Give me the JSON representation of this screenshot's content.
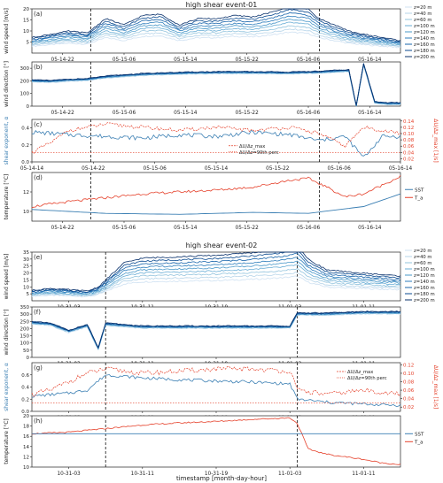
{
  "chart_data": [
    {
      "event_title": "high shear event-01",
      "xlabel": "",
      "x_ticks": [
        "05-14-22",
        "05-15-06",
        "05-15-14",
        "05-15-22",
        "05-16-06",
        "05-16-14"
      ],
      "panel_c_x_ticks": [
        "05-14-14",
        "05-14-22",
        "05-15-06",
        "05-15-14",
        "05-15-22",
        "05-16-06",
        "05-16-14"
      ],
      "event_window": {
        "start": 0.16,
        "end": 0.78
      },
      "heights": [
        "z=20 m",
        "z=40 m",
        "z=60 m",
        "z=100 m",
        "z=120 m",
        "z=140 m",
        "z=160 m",
        "z=180 m",
        "z=200 m"
      ],
      "panels": [
        {
          "id": "a",
          "label": "(a)",
          "type": "line",
          "ylabel": "wind speed [m/s]",
          "ylim": [
            0,
            20
          ],
          "yticks": [
            "5",
            "10",
            "15",
            "20"
          ],
          "shape_profile": [
            [
              0,
              0.25
            ],
            [
              0.05,
              0.3
            ],
            [
              0.1,
              0.35
            ],
            [
              0.15,
              0.32
            ],
            [
              0.2,
              0.55
            ],
            [
              0.25,
              0.45
            ],
            [
              0.3,
              0.6
            ],
            [
              0.35,
              0.62
            ],
            [
              0.4,
              0.45
            ],
            [
              0.45,
              0.55
            ],
            [
              0.5,
              0.55
            ],
            [
              0.55,
              0.6
            ],
            [
              0.6,
              0.58
            ],
            [
              0.65,
              0.65
            ],
            [
              0.7,
              0.75
            ],
            [
              0.75,
              0.7
            ],
            [
              0.78,
              0.55
            ],
            [
              0.82,
              0.45
            ],
            [
              0.86,
              0.35
            ],
            [
              0.9,
              0.3
            ],
            [
              0.95,
              0.25
            ],
            [
              1.0,
              0.2
            ]
          ]
        },
        {
          "id": "b",
          "label": "(b)",
          "type": "line",
          "ylabel": "wind direction [°]",
          "ylim": [
            0,
            350
          ],
          "yticks": [
            "0",
            "100",
            "200",
            "300"
          ],
          "points": [
            [
              0,
              200
            ],
            [
              0.05,
              195
            ],
            [
              0.1,
              205
            ],
            [
              0.15,
              210
            ],
            [
              0.2,
              230
            ],
            [
              0.3,
              250
            ],
            [
              0.4,
              260
            ],
            [
              0.5,
              265
            ],
            [
              0.6,
              265
            ],
            [
              0.7,
              262
            ],
            [
              0.78,
              268
            ],
            [
              0.82,
              275
            ],
            [
              0.86,
              280
            ],
            [
              0.88,
              0
            ],
            [
              0.9,
              330
            ],
            [
              0.93,
              30
            ],
            [
              0.96,
              20
            ],
            [
              1.0,
              20
            ]
          ]
        },
        {
          "id": "c",
          "label": "(c)",
          "type": "line",
          "ylabel": "shear exponent, α",
          "ylabel_right": "ΔU/Δz_max [1/s]",
          "ylim": [
            0,
            0.5
          ],
          "yticks": [
            "0.0",
            "0.2",
            "0.4"
          ],
          "yticks_right": [
            "0.02",
            "0.04",
            "0.06",
            "0.08",
            "0.10",
            "0.12",
            "0.14"
          ],
          "legend": [
            "ΔU/Δz_max",
            "ΔU/Δz=90th perc"
          ],
          "percentile_line": 0.04,
          "points_alpha": [
            [
              0,
              0.35
            ],
            [
              0.1,
              0.32
            ],
            [
              0.2,
              0.3
            ],
            [
              0.3,
              0.28
            ],
            [
              0.4,
              0.32
            ],
            [
              0.5,
              0.3
            ],
            [
              0.6,
              0.35
            ],
            [
              0.7,
              0.32
            ],
            [
              0.78,
              0.25
            ],
            [
              0.85,
              0.3
            ],
            [
              0.9,
              0.05
            ],
            [
              0.95,
              0.3
            ],
            [
              1.0,
              0.3
            ]
          ],
          "points_shear": [
            [
              0,
              0.04
            ],
            [
              0.05,
              0.07
            ],
            [
              0.1,
              0.11
            ],
            [
              0.2,
              0.13
            ],
            [
              0.3,
              0.12
            ],
            [
              0.4,
              0.11
            ],
            [
              0.5,
              0.12
            ],
            [
              0.6,
              0.11
            ],
            [
              0.7,
              0.12
            ],
            [
              0.78,
              0.1
            ],
            [
              0.85,
              0.06
            ],
            [
              0.9,
              0.12
            ],
            [
              1.0,
              0.1
            ]
          ]
        },
        {
          "id": "d",
          "label": "(d)",
          "type": "line",
          "ylabel": "temperature [°C]",
          "ylim": [
            9,
            14
          ],
          "yticks": [
            "10",
            "12"
          ],
          "legend": [
            "SST",
            "T_a"
          ],
          "colors": {
            "SST": "#3b7fb3",
            "T_a": "#e5412b"
          },
          "points_sst": [
            [
              0,
              10.2
            ],
            [
              0.2,
              9.8
            ],
            [
              0.4,
              9.7
            ],
            [
              0.6,
              9.9
            ],
            [
              0.75,
              9.8
            ],
            [
              0.9,
              10.5
            ],
            [
              1.0,
              11.8
            ]
          ],
          "points_ta": [
            [
              0,
              10.5
            ],
            [
              0.1,
              11.0
            ],
            [
              0.2,
              11.4
            ],
            [
              0.3,
              11.8
            ],
            [
              0.4,
              12.0
            ],
            [
              0.5,
              12.2
            ],
            [
              0.6,
              12.5
            ],
            [
              0.7,
              13.2
            ],
            [
              0.75,
              13.4
            ],
            [
              0.8,
              12.5
            ],
            [
              0.85,
              11.5
            ],
            [
              0.9,
              11.8
            ],
            [
              1.0,
              13.6
            ]
          ]
        }
      ]
    },
    {
      "event_title": "high shear event-02",
      "xlabel": "timestamp [month-day-hour]",
      "x_ticks": [
        "10-31-03",
        "10-31-11",
        "10-31-19",
        "11-01-03",
        "11-01-11"
      ],
      "event_window": {
        "start": 0.2,
        "end": 0.72
      },
      "heights": [
        "z=20 m",
        "z=40 m",
        "z=60 m",
        "z=100 m",
        "z=120 m",
        "z=140 m",
        "z=160 m",
        "z=180 m",
        "z=200 m"
      ],
      "panels": [
        {
          "id": "e",
          "label": "(e)",
          "type": "line",
          "ylabel": "wind speed [m/s]",
          "ylim": [
            0,
            35
          ],
          "yticks": [
            "5",
            "10",
            "15",
            "20",
            "25",
            "30",
            "35"
          ],
          "shape_profile": [
            [
              0,
              0.15
            ],
            [
              0.05,
              0.18
            ],
            [
              0.1,
              0.16
            ],
            [
              0.15,
              0.14
            ],
            [
              0.18,
              0.2
            ],
            [
              0.2,
              0.3
            ],
            [
              0.25,
              0.55
            ],
            [
              0.3,
              0.62
            ],
            [
              0.4,
              0.64
            ],
            [
              0.5,
              0.66
            ],
            [
              0.6,
              0.7
            ],
            [
              0.68,
              0.75
            ],
            [
              0.72,
              0.8
            ],
            [
              0.75,
              0.6
            ],
            [
              0.8,
              0.45
            ],
            [
              0.85,
              0.42
            ],
            [
              0.9,
              0.4
            ],
            [
              1.0,
              0.36
            ]
          ]
        },
        {
          "id": "f",
          "label": "(f)",
          "type": "line",
          "ylabel": "wind direction [°]",
          "ylim": [
            0,
            350
          ],
          "yticks": [
            "0",
            "50",
            "100",
            "150",
            "200",
            "250",
            "300",
            "350"
          ],
          "points": [
            [
              0,
              240
            ],
            [
              0.05,
              230
            ],
            [
              0.1,
              180
            ],
            [
              0.15,
              220
            ],
            [
              0.18,
              60
            ],
            [
              0.2,
              230
            ],
            [
              0.3,
              210
            ],
            [
              0.4,
              210
            ],
            [
              0.5,
              210
            ],
            [
              0.6,
              210
            ],
            [
              0.7,
              210
            ],
            [
              0.72,
              300
            ],
            [
              0.8,
              300
            ],
            [
              0.9,
              310
            ],
            [
              1.0,
              310
            ]
          ]
        },
        {
          "id": "g",
          "label": "(g)",
          "type": "line",
          "ylabel": "shear exponent, α",
          "ylabel_right": "ΔU/Δz_max [1/s]",
          "ylim": [
            0,
            0.8
          ],
          "yticks": [
            "0.0",
            "0.2",
            "0.4",
            "0.6"
          ],
          "yticks_right": [
            "0.02",
            "0.04",
            "0.06",
            "0.08",
            "0.10",
            "0.12"
          ],
          "legend": [
            "ΔU/Δz_max",
            "ΔU/Δz=90th perc"
          ],
          "percentile_line": 0.03,
          "points_alpha": [
            [
              0,
              0.25
            ],
            [
              0.1,
              0.3
            ],
            [
              0.15,
              0.35
            ],
            [
              0.2,
              0.6
            ],
            [
              0.3,
              0.55
            ],
            [
              0.4,
              0.52
            ],
            [
              0.5,
              0.5
            ],
            [
              0.6,
              0.48
            ],
            [
              0.7,
              0.45
            ],
            [
              0.72,
              0.2
            ],
            [
              0.8,
              0.15
            ],
            [
              0.9,
              0.12
            ],
            [
              1.0,
              0.1
            ]
          ],
          "points_shear": [
            [
              0,
              0.05
            ],
            [
              0.05,
              0.06
            ],
            [
              0.1,
              0.08
            ],
            [
              0.15,
              0.1
            ],
            [
              0.2,
              0.11
            ],
            [
              0.3,
              0.1
            ],
            [
              0.4,
              0.105
            ],
            [
              0.5,
              0.11
            ],
            [
              0.6,
              0.11
            ],
            [
              0.7,
              0.105
            ],
            [
              0.72,
              0.06
            ],
            [
              0.8,
              0.05
            ],
            [
              0.9,
              0.06
            ],
            [
              1.0,
              0.05
            ]
          ]
        },
        {
          "id": "h",
          "label": "(h)",
          "type": "line",
          "ylabel": "temperature [°C]",
          "ylim": [
            10,
            20
          ],
          "yticks": [
            "10",
            "12",
            "14",
            "16",
            "18",
            "20"
          ],
          "legend": [
            "SST",
            "T_a"
          ],
          "colors": {
            "SST": "#3b7fb3",
            "T_a": "#e5412b"
          },
          "points_sst": [
            [
              0,
              16.5
            ],
            [
              0.5,
              16.5
            ],
            [
              1.0,
              16.5
            ]
          ],
          "points_ta": [
            [
              0,
              16.5
            ],
            [
              0.1,
              16.8
            ],
            [
              0.2,
              17.5
            ],
            [
              0.3,
              18.2
            ],
            [
              0.4,
              18.6
            ],
            [
              0.5,
              18.9
            ],
            [
              0.6,
              19.3
            ],
            [
              0.7,
              19.6
            ],
            [
              0.72,
              18.5
            ],
            [
              0.75,
              13.5
            ],
            [
              0.8,
              12.5
            ],
            [
              0.85,
              12.0
            ],
            [
              0.9,
              11.5
            ],
            [
              0.95,
              10.8
            ],
            [
              1.0,
              10.5
            ]
          ]
        }
      ]
    }
  ],
  "height_colors": [
    "#cfe1f2",
    "#b5d4e9",
    "#93c4de",
    "#6aaed6",
    "#4a98c9",
    "#2e7ebc",
    "#1764ab",
    "#0a4a90",
    "#08306b"
  ]
}
